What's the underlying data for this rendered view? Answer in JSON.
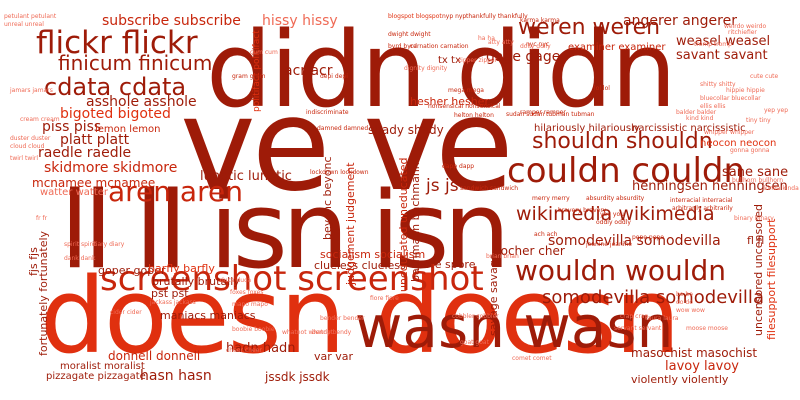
{
  "palette": {
    "background": "#ffffff",
    "dark": "#9e1b08",
    "mid": "#c8260c",
    "bright": "#e0300f",
    "light": "#ef6a55",
    "pale": "#f4a090"
  },
  "words": {
    "didn": "didn didn",
    "veve": "ve ve",
    "lllisn": "ll ll isn isn",
    "doesn": "doesn doesn",
    "wasn": "wasn wasn",
    "screenshot": "screenshot screenshot",
    "flickr": "flickr flickr",
    "aren": "aren aren",
    "couldn": "couldn couldn",
    "wouldn": "wouldn wouldn",
    "shouldn": "shouldn shouldn",
    "weren": "weren weren",
    "cdata": "cdata cdata",
    "finicum": "finicum finicum",
    "wikimedia": "wikimedia wikimedia",
    "somodevilla1": "somodevilla somodevilla",
    "somodevilla2": "somodevilla somodevilla",
    "subscribe": "subscribe subscribe",
    "hissy": "hissy hissy",
    "angerer": "angerer angerer",
    "weasel": "weasel weasel",
    "savant": "savant savant",
    "examiner": "examiner examiner",
    "gage": "gage gage",
    "acr": "acr acr",
    "asshole": "asshole asshole",
    "bigoted": "bigoted bigoted",
    "piss": "piss piss",
    "platt": "platt platt",
    "raedle": "raedle raedle",
    "skidmore": "skidmore skidmore",
    "mcnamee": "mcnamee mcnamee",
    "lunatic": "lunatic lunatic",
    "js": "js js",
    "henningsen": "henningsen henningsen",
    "sane": "sane sane",
    "hadn": "hadn hadn",
    "hasn": "hasn hasn",
    "donnell": "donnell donnell",
    "masochist": "masochist masochist",
    "lavoy": "lavoy lavoy",
    "violently": "violently violently",
    "jssdk": "jssdk jssdk",
    "var": "var var",
    "goper": "goper goper",
    "brutally": "brutally brutally",
    "barfly": "barfly barfly",
    "pst": "pst pst",
    "maniacs": "maniacs maniacs",
    "socialism": "socialism socialism",
    "clueless": "clueless clueless",
    "spore": "spore spore",
    "hilariously": "hilariously hilariously",
    "narcissistic": "narcissistic narcissistic",
    "neocon": "neocon neocon",
    "bocher": "bocher cher",
    "shady": "shady shady",
    "hesher": "hesher hesher",
    "fl": "fl fl",
    "lemon": "lemon lemon",
    "watter": "watter watter",
    "pizzagate": "pizzagate pizzagate",
    "moralist": "moralist moralist",
    "tx": "tx tx",
    "fortunately": "fortunately fortunately",
    "fjs": "fjs fjs",
    "beyonc": "beyonc beyonc",
    "judgement": "judgement judgement",
    "bachmann": "bachmann bachmann",
    "uncensored": "uncensored uncensored",
    "filesupport": "filesupport filesupport",
    "savage": "savage savage",
    "politifact": "politifact politifact",
    "uneducated": "uneducated uneducated",
    "small": [
      "petulant petulant",
      "unreal unreal",
      "blogspot blogspot",
      "nyp nyp",
      "thankfully thankfully",
      "karma karma",
      "weirdo weirdo",
      "ritchiefier",
      "nyc nyc",
      "dwight dwight",
      "byrd byrd",
      "carnation carnation",
      "zipper zipper",
      "lol lol",
      "ha ha",
      "atty atty",
      "dolly dolly",
      "cum cum",
      "jamars jamars",
      "gram gram",
      "mega mega",
      "depi depi",
      "cream cream",
      "ramper ramper",
      "sudan sudan",
      "nonsensical nonsensical",
      "helton helton",
      "tubman tubman",
      "damned damned",
      "indiscriminate",
      "dapp dapp",
      "lockdown lockdown",
      "sandwich sandwich",
      "merry merry",
      "bravery bravery",
      "absurdity absurdity",
      "you you",
      "oddly oddly",
      "ach ach",
      "jeanine jeanine",
      "pepe pepe",
      "hippie hippie",
      "bluecollar bluecollar",
      "ellis ellis",
      "balder balder",
      "tiny tiny",
      "whipper whipper",
      "interracial interracial",
      "arbitrarily arbitrarily",
      "gonna gonna",
      "binary binary",
      "bullhorn bullhorn",
      "bo bo",
      "do do",
      "wow wow",
      "comet comet",
      "servant servant",
      "fiore fiore",
      "laura laura",
      "moose moose",
      "brian brian",
      "boobie boobie",
      "cider cider",
      "diary diary",
      "dank dank",
      "spirit spirit",
      "kinda kinda",
      "cute cute",
      "yep yep",
      "kind kind",
      "shitty shitty",
      "crap crap",
      "mapo mapo",
      "duca duca",
      "foxes foxes",
      "jackass jackass",
      "dignity dignity",
      "cobbler cobbler",
      "tromp tromp",
      "fr fr",
      "cheer cheer",
      "duster duster",
      "cloud cloud",
      "twirl twirl",
      "bendy bendy",
      "bender bender",
      "goat goat",
      "whatnot whatnot",
      "clever clever",
      "zealot zealot"
    ]
  }
}
